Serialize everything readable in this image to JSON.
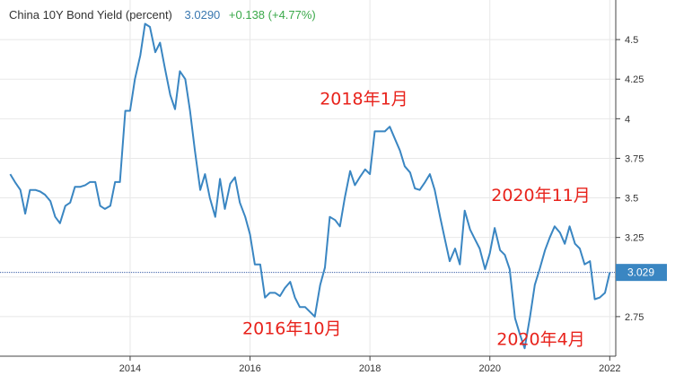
{
  "legend": {
    "series_name": "China 10Y Bond Yield (percent)",
    "last_value": "3.0290",
    "change": "+0.138 (+4.77%)"
  },
  "price_label": "3.029",
  "colors": {
    "line": "#3a86c2",
    "grid": "#e8e8e8",
    "axis": "#444444",
    "label_red": "#e8231c",
    "price_box": "#3a86c2",
    "change_green": "#3aa94a"
  },
  "chart_data": {
    "type": "line",
    "title": "China 10Y Bond Yield (percent)",
    "xlabel": "",
    "ylabel": "",
    "xlim": [
      2012.0,
      2022.1
    ],
    "ylim": [
      2.5,
      4.75
    ],
    "x_ticks": [
      "2014",
      "2016",
      "2018",
      "2020",
      "2022"
    ],
    "y_ticks": [
      "2.75",
      "3",
      "3.25",
      "3.5",
      "3.75",
      "4",
      "4.25",
      "4.5"
    ],
    "current_value": 3.029,
    "grid": true,
    "annotations": [
      {
        "text": "2018年1月",
        "x": 2017.9,
        "y": 4.09
      },
      {
        "text": "2016年10月",
        "x": 2016.7,
        "y": 2.64
      },
      {
        "text": "2020年11月",
        "x": 2020.85,
        "y": 3.48
      },
      {
        "text": "2020年4月",
        "x": 2020.85,
        "y": 2.57
      }
    ],
    "series": [
      {
        "values": [
          [
            2012.0,
            3.65
          ],
          [
            2012.08,
            3.6
          ],
          [
            2012.17,
            3.55
          ],
          [
            2012.25,
            3.4
          ],
          [
            2012.33,
            3.55
          ],
          [
            2012.42,
            3.55
          ],
          [
            2012.5,
            3.54
          ],
          [
            2012.58,
            3.52
          ],
          [
            2012.67,
            3.48
          ],
          [
            2012.75,
            3.38
          ],
          [
            2012.83,
            3.34
          ],
          [
            2012.92,
            3.45
          ],
          [
            2013.0,
            3.47
          ],
          [
            2013.08,
            3.57
          ],
          [
            2013.17,
            3.57
          ],
          [
            2013.25,
            3.58
          ],
          [
            2013.33,
            3.6
          ],
          [
            2013.42,
            3.6
          ],
          [
            2013.5,
            3.45
          ],
          [
            2013.58,
            3.43
          ],
          [
            2013.67,
            3.45
          ],
          [
            2013.75,
            3.6
          ],
          [
            2013.83,
            3.6
          ],
          [
            2013.92,
            4.05
          ],
          [
            2014.0,
            4.05
          ],
          [
            2014.08,
            4.25
          ],
          [
            2014.17,
            4.4
          ],
          [
            2014.25,
            4.6
          ],
          [
            2014.33,
            4.58
          ],
          [
            2014.42,
            4.42
          ],
          [
            2014.5,
            4.48
          ],
          [
            2014.58,
            4.32
          ],
          [
            2014.67,
            4.15
          ],
          [
            2014.75,
            4.06
          ],
          [
            2014.83,
            4.3
          ],
          [
            2014.92,
            4.25
          ],
          [
            2015.0,
            4.05
          ],
          [
            2015.08,
            3.8
          ],
          [
            2015.17,
            3.55
          ],
          [
            2015.25,
            3.65
          ],
          [
            2015.33,
            3.5
          ],
          [
            2015.42,
            3.38
          ],
          [
            2015.5,
            3.62
          ],
          [
            2015.58,
            3.43
          ],
          [
            2015.67,
            3.59
          ],
          [
            2015.75,
            3.63
          ],
          [
            2015.83,
            3.47
          ],
          [
            2015.92,
            3.38
          ],
          [
            2016.0,
            3.27
          ],
          [
            2016.08,
            3.08
          ],
          [
            2016.17,
            3.08
          ],
          [
            2016.25,
            2.87
          ],
          [
            2016.33,
            2.9
          ],
          [
            2016.42,
            2.9
          ],
          [
            2016.5,
            2.88
          ],
          [
            2016.58,
            2.93
          ],
          [
            2016.67,
            2.97
          ],
          [
            2016.75,
            2.87
          ],
          [
            2016.83,
            2.81
          ],
          [
            2016.92,
            2.81
          ],
          [
            2017.0,
            2.78
          ],
          [
            2017.08,
            2.75
          ],
          [
            2017.17,
            2.95
          ],
          [
            2017.25,
            3.06
          ],
          [
            2017.33,
            3.38
          ],
          [
            2017.42,
            3.36
          ],
          [
            2017.5,
            3.32
          ],
          [
            2017.58,
            3.5
          ],
          [
            2017.67,
            3.67
          ],
          [
            2017.75,
            3.58
          ],
          [
            2017.83,
            3.63
          ],
          [
            2017.92,
            3.68
          ],
          [
            2018.0,
            3.65
          ],
          [
            2018.08,
            3.92
          ],
          [
            2018.17,
            3.92
          ],
          [
            2018.25,
            3.92
          ],
          [
            2018.33,
            3.95
          ],
          [
            2018.42,
            3.87
          ],
          [
            2018.5,
            3.8
          ],
          [
            2018.58,
            3.7
          ],
          [
            2018.67,
            3.66
          ],
          [
            2018.75,
            3.56
          ],
          [
            2018.83,
            3.55
          ],
          [
            2018.92,
            3.6
          ],
          [
            2019.0,
            3.65
          ],
          [
            2019.08,
            3.55
          ],
          [
            2019.17,
            3.38
          ],
          [
            2019.25,
            3.24
          ],
          [
            2019.33,
            3.1
          ],
          [
            2019.42,
            3.18
          ],
          [
            2019.5,
            3.08
          ],
          [
            2019.58,
            3.42
          ],
          [
            2019.67,
            3.3
          ],
          [
            2019.75,
            3.24
          ],
          [
            2019.83,
            3.18
          ],
          [
            2019.92,
            3.05
          ],
          [
            2020.0,
            3.15
          ],
          [
            2020.08,
            3.31
          ],
          [
            2020.17,
            3.17
          ],
          [
            2020.25,
            3.14
          ],
          [
            2020.33,
            3.05
          ],
          [
            2020.42,
            2.74
          ],
          [
            2020.5,
            2.64
          ],
          [
            2020.58,
            2.55
          ],
          [
            2020.67,
            2.75
          ],
          [
            2020.75,
            2.95
          ],
          [
            2020.83,
            3.05
          ],
          [
            2020.92,
            3.17
          ],
          [
            2021.0,
            3.25
          ],
          [
            2021.08,
            3.32
          ],
          [
            2021.17,
            3.28
          ],
          [
            2021.25,
            3.21
          ],
          [
            2021.33,
            3.32
          ],
          [
            2021.42,
            3.21
          ],
          [
            2021.5,
            3.18
          ],
          [
            2021.58,
            3.08
          ],
          [
            2021.67,
            3.1
          ],
          [
            2021.75,
            2.86
          ],
          [
            2021.83,
            2.87
          ],
          [
            2021.92,
            2.9
          ],
          [
            2022.0,
            3.029
          ]
        ]
      }
    ]
  }
}
